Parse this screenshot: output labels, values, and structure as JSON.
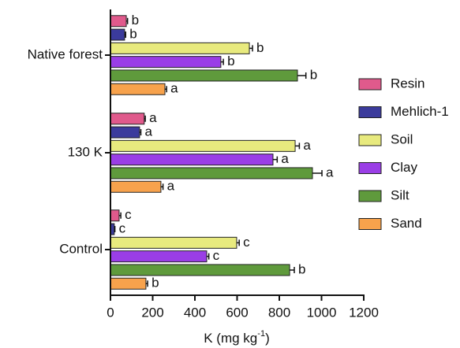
{
  "chart_data": {
    "type": "bar",
    "orientation": "horizontal",
    "categories": [
      "Native forest",
      "130 K",
      "Control"
    ],
    "series": [
      {
        "name": "Resin",
        "color": "#e05a8c",
        "values": [
          75,
          160,
          41
        ],
        "errors": [
          6,
          5,
          8
        ],
        "letters": [
          "b",
          "a",
          "c"
        ]
      },
      {
        "name": "Mehlich-1",
        "color": "#3b3b9c",
        "values": [
          67,
          138,
          18
        ],
        "errors": [
          5,
          6,
          3
        ],
        "letters": [
          "b",
          "a",
          "c"
        ]
      },
      {
        "name": "Soil",
        "color": "#e8ea7e",
        "values": [
          658,
          875,
          598
        ],
        "errors": [
          15,
          20,
          12
        ],
        "letters": [
          "b",
          "a",
          "c"
        ]
      },
      {
        "name": "Clay",
        "color": "#9a3ee6",
        "values": [
          523,
          770,
          456
        ],
        "errors": [
          12,
          20,
          10
        ],
        "letters": [
          "b",
          "a",
          "c"
        ]
      },
      {
        "name": "Silt",
        "color": "#5f9a3c",
        "values": [
          886,
          957,
          849
        ],
        "errors": [
          40,
          45,
          22
        ],
        "letters": [
          "b",
          "a",
          "b"
        ]
      },
      {
        "name": "Sand",
        "color": "#f7a24c",
        "values": [
          258,
          239,
          168
        ],
        "errors": [
          8,
          10,
          8
        ],
        "letters": [
          "a",
          "a",
          "b"
        ]
      }
    ],
    "xlim": [
      0,
      1200
    ],
    "xticks": [
      0,
      200,
      400,
      600,
      800,
      1000,
      1200
    ],
    "xlabel": [
      "K (mg kg",
      "-1",
      ")"
    ],
    "legend": "right"
  }
}
